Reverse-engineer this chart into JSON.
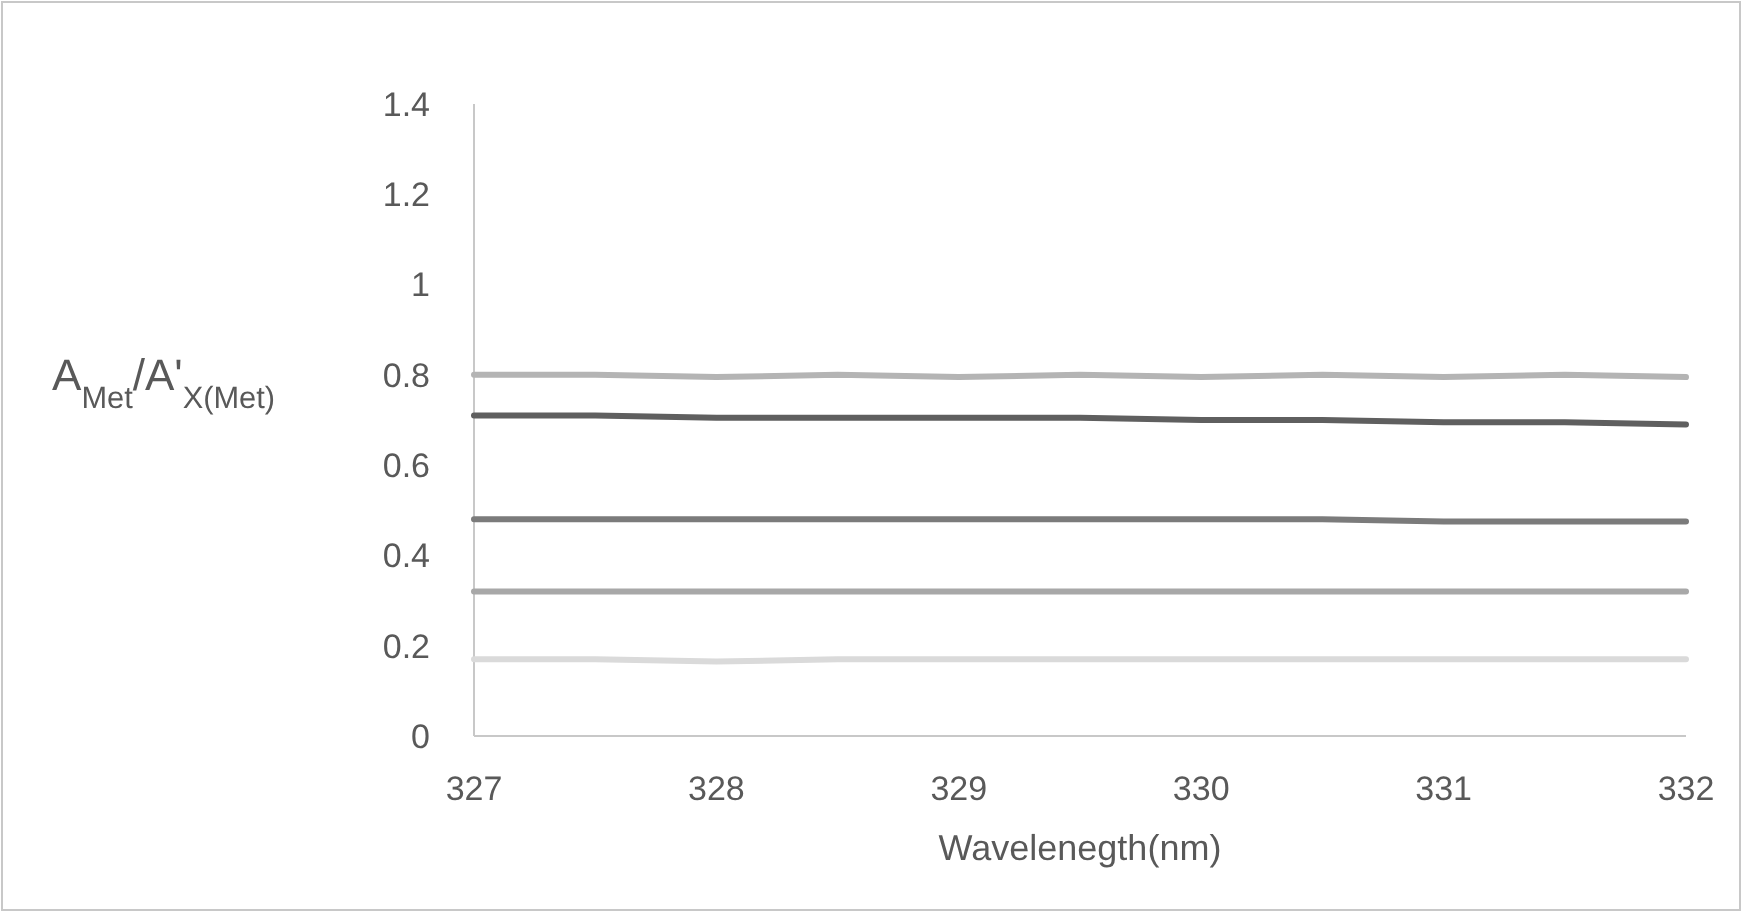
{
  "chart_data": {
    "type": "line",
    "xlabel": "Wavelenegth(nm)",
    "ylabel": "A$_{Met}$/A'$_{X(Met)}$",
    "x": [
      327,
      327.5,
      328,
      328.5,
      329,
      329.5,
      330,
      330.5,
      331,
      331.5,
      332
    ],
    "series": [
      {
        "color": "#b4b4b4",
        "values": [
          0.8,
          0.8,
          0.795,
          0.8,
          0.795,
          0.8,
          0.795,
          0.8,
          0.795,
          0.8,
          0.795
        ]
      },
      {
        "color": "#5f5f5f",
        "values": [
          0.71,
          0.71,
          0.705,
          0.705,
          0.705,
          0.705,
          0.7,
          0.7,
          0.695,
          0.695,
          0.69
        ]
      },
      {
        "color": "#7b7b7b",
        "values": [
          0.48,
          0.48,
          0.48,
          0.48,
          0.48,
          0.48,
          0.48,
          0.48,
          0.475,
          0.475,
          0.475
        ]
      },
      {
        "color": "#a8a8a8",
        "values": [
          0.32,
          0.32,
          0.32,
          0.32,
          0.32,
          0.32,
          0.32,
          0.32,
          0.32,
          0.32,
          0.32
        ]
      },
      {
        "color": "#dadada",
        "values": [
          0.17,
          0.17,
          0.165,
          0.17,
          0.17,
          0.17,
          0.17,
          0.17,
          0.17,
          0.17,
          0.17
        ]
      }
    ],
    "xlim": [
      327,
      332
    ],
    "xticks": [
      327,
      328,
      329,
      330,
      331,
      332
    ],
    "ylim": [
      0,
      1.4
    ],
    "yticks": [
      0,
      0.2,
      0.4,
      0.6,
      0.8,
      {
        "value": 1,
        "label": "1"
      },
      1.2,
      1.4
    ],
    "grid": false,
    "marker": "none",
    "line_style": "solid"
  }
}
